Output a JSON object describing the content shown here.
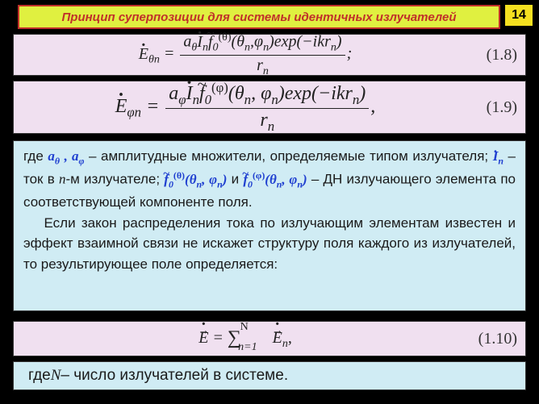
{
  "page_number": "14",
  "header_title": "Принцип суперпозиции для системы идентичных излучателей",
  "colors": {
    "header_bg": "#e0f040",
    "header_border": "#c0302a",
    "header_text": "#c0302a",
    "page_num_bg": "#f5e020",
    "eq_bg": "#f0e0f0",
    "text_bg": "#d0ecf4",
    "math_blue": "#2040d0",
    "body_text": "#1a1a1a"
  },
  "equations": {
    "eq18": {
      "label": "(1.8)",
      "tail": ";"
    },
    "eq19": {
      "label": "(1.9)",
      "tail": ","
    },
    "eq110": {
      "label": "(1.10)",
      "tail": ","
    }
  },
  "text": {
    "p1_a": "где ",
    "p1_b": " – амплитудные множители, определяемые типом излучателя; ",
    "p1_c": " – ток в ",
    "p1_d": "-м излучателе; ",
    "p1_e": " и ",
    "p1_f": " – ДН излучающего элемента по соответствующей компоненте поля.",
    "p2": "Если закон распределения тока по излучающим элементам известен и эффект взаимной связи не искажет структуру поля каждого из излучателей, то результирующее поле определяется:",
    "n_text": "n",
    "bottom_a": "где ",
    "bottom_N": "N",
    "bottom_b": " – число излучателей в системе."
  },
  "inline_math": {
    "a_theta": "a",
    "a_theta_sub": "θ",
    "a_phi": "a",
    "a_phi_sub": "φ",
    "comma_sep": " , ",
    "I": "I",
    "I_sub": "n",
    "f0": "f",
    "f0_sub": "0",
    "sup_theta": "(θ)",
    "sup_phi": "(φ)",
    "args": "(θ",
    "args_n": "n",
    "args_mid": ", φ",
    "args_end": ")"
  }
}
